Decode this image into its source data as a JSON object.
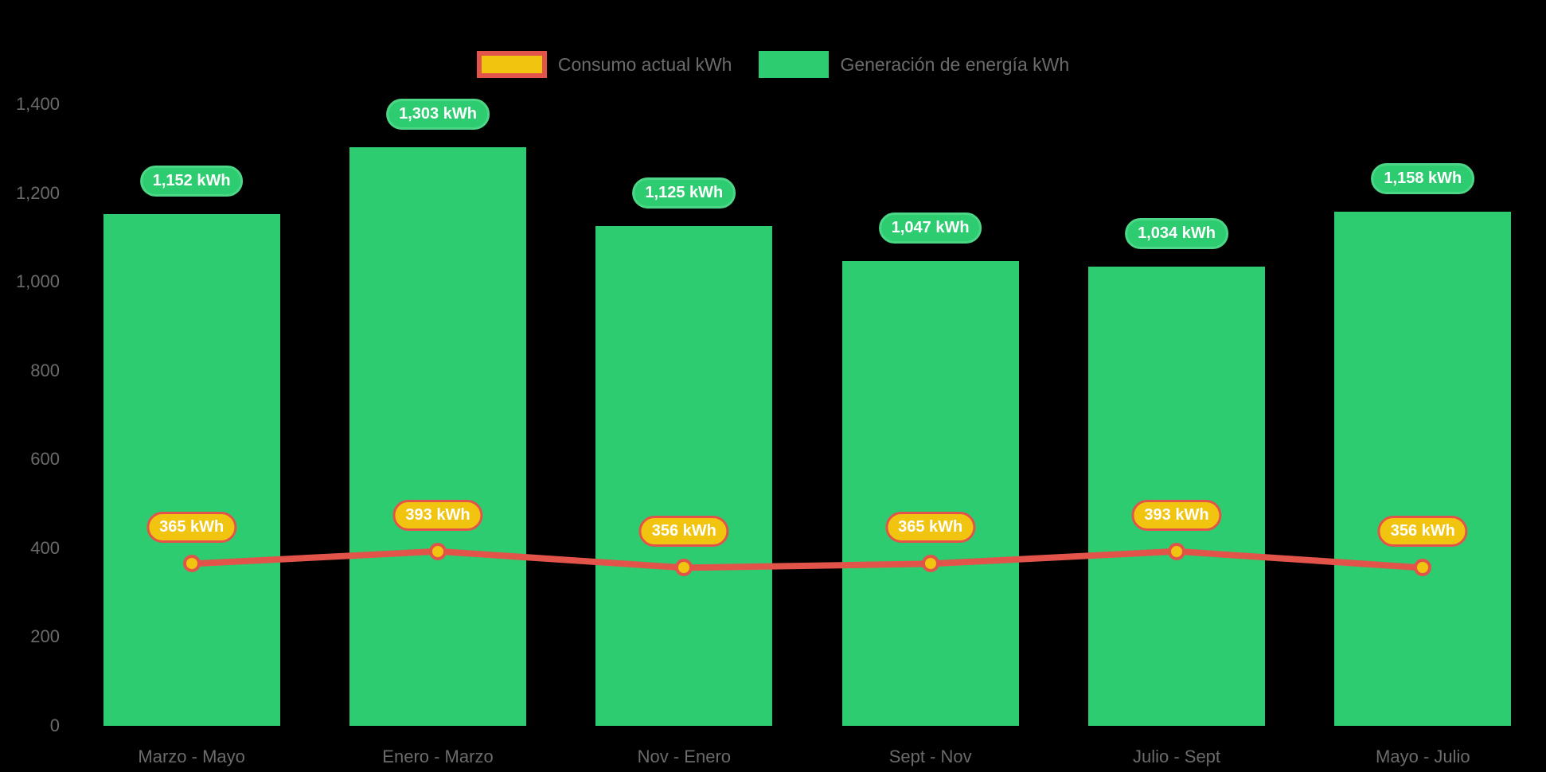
{
  "colors": {
    "background": "#000000",
    "bar_green": "#2ecc71",
    "bar_pill_border": "#4cd787",
    "line_red": "#e2534a",
    "marker_fill": "#f1c40f",
    "axis_text": "#6b6b6b",
    "pill_text": "#ffffff"
  },
  "legend": {
    "consumption_label": "Consumo actual kWh",
    "generation_label": "Generación de energía kWh"
  },
  "chart_data": {
    "type": "bar-line-combo",
    "categories": [
      "Marzo - Mayo",
      "Enero - Marzo",
      "Nov - Enero",
      "Sept - Nov",
      "Julio - Sept",
      "Mayo - Julio"
    ],
    "series": [
      {
        "name": "Generación de energía kWh",
        "type": "bar",
        "color": "#2ecc71",
        "values": [
          1152,
          1303,
          1125,
          1047,
          1034,
          1158
        ],
        "labels": [
          "1,152 kWh",
          "1,303 kWh",
          "1,125 kWh",
          "1,047 kWh",
          "1,034 kWh",
          "1,158 kWh"
        ]
      },
      {
        "name": "Consumo actual kWh",
        "type": "line",
        "color": "#e2534a",
        "values": [
          365,
          393,
          356,
          365,
          393,
          356
        ],
        "labels": [
          "365 kWh",
          "393 kWh",
          "356 kWh",
          "365 kWh",
          "393 kWh",
          "356 kWh"
        ]
      }
    ],
    "ylim": [
      0,
      1400
    ],
    "yticks": [
      0,
      200,
      400,
      600,
      800,
      1000,
      1200,
      1400
    ],
    "ytick_labels": [
      "0",
      "200",
      "400",
      "600",
      "800",
      "1,000",
      "1,200",
      "1,400"
    ],
    "xlabel": "",
    "ylabel": "",
    "grid": false,
    "legend_position": "top-center"
  }
}
